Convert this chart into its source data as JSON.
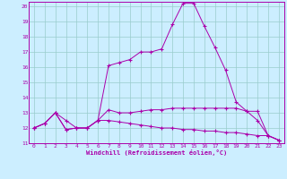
{
  "xlabel": "Windchill (Refroidissement éolien,°C)",
  "bg_color": "#cceeff",
  "grid_color": "#99cccc",
  "line_color": "#aa00aa",
  "xlim": [
    -0.5,
    23.5
  ],
  "ylim": [
    11,
    20.3
  ],
  "yticks": [
    11,
    12,
    13,
    14,
    15,
    16,
    17,
    18,
    19,
    20
  ],
  "xticks": [
    0,
    1,
    2,
    3,
    4,
    5,
    6,
    7,
    8,
    9,
    10,
    11,
    12,
    13,
    14,
    15,
    16,
    17,
    18,
    19,
    20,
    21,
    22,
    23
  ],
  "line1_x": [
    0,
    1,
    2,
    3,
    4,
    5,
    6,
    7,
    8,
    9,
    10,
    11,
    12,
    13,
    14,
    15,
    16,
    17,
    18,
    19,
    20,
    21,
    22,
    23
  ],
  "line1_y": [
    12.0,
    12.3,
    13.0,
    12.5,
    12.0,
    12.0,
    12.5,
    16.1,
    16.3,
    16.5,
    17.0,
    17.0,
    17.2,
    18.8,
    20.2,
    20.2,
    18.7,
    17.3,
    15.8,
    13.7,
    13.1,
    12.5,
    11.5,
    11.2
  ],
  "line2_x": [
    0,
    1,
    2,
    3,
    4,
    5,
    6,
    7,
    8,
    9,
    10,
    11,
    12,
    13,
    14,
    15,
    16,
    17,
    18,
    19,
    20,
    21,
    22,
    23
  ],
  "line2_y": [
    12.0,
    12.3,
    13.0,
    11.9,
    12.0,
    12.0,
    12.5,
    13.2,
    13.0,
    13.0,
    13.1,
    13.2,
    13.2,
    13.3,
    13.3,
    13.3,
    13.3,
    13.3,
    13.3,
    13.3,
    13.1,
    13.1,
    11.5,
    11.2
  ],
  "line3_x": [
    0,
    1,
    2,
    3,
    4,
    5,
    6,
    7,
    8,
    9,
    10,
    11,
    12,
    13,
    14,
    15,
    16,
    17,
    18,
    19,
    20,
    21,
    22,
    23
  ],
  "line3_y": [
    12.0,
    12.3,
    13.0,
    11.9,
    12.0,
    12.0,
    12.5,
    12.5,
    12.4,
    12.3,
    12.2,
    12.1,
    12.0,
    12.0,
    11.9,
    11.9,
    11.8,
    11.8,
    11.7,
    11.7,
    11.6,
    11.5,
    11.5,
    11.2
  ]
}
